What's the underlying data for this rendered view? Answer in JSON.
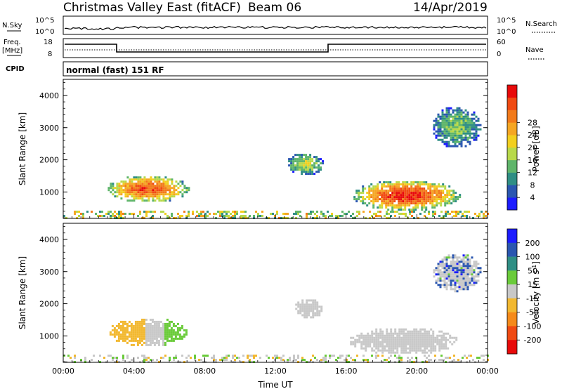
{
  "header": {
    "station": "Christmas Valley East (fitACF)",
    "beam": "Beam 06",
    "date": "14/Apr/2019"
  },
  "noise_panel": {
    "left_label": "N.Sky",
    "left_ticks": [
      "10^5",
      "10^0"
    ],
    "right_label": "N.Search",
    "right_ticks": [
      "10^5",
      "10^0"
    ]
  },
  "freq_panel": {
    "left_label_1": "Freq.",
    "left_label_2": "[MHz]",
    "left_ticks": [
      "18",
      "8"
    ],
    "right_label": "Nave",
    "right_ticks": [
      "60",
      "0"
    ]
  },
  "cpid": {
    "label": "CPID",
    "text": "normal (fast) 151 RF"
  },
  "chart_data": [
    {
      "type": "heatmap",
      "panel": "power",
      "ylabel": "Slant Range [km]",
      "ylim": [
        180,
        4500
      ],
      "yticks": [
        1000,
        2000,
        3000,
        4000
      ],
      "xlim_hours": [
        0,
        24
      ],
      "colorbar": {
        "label": "Power [dB]",
        "ticks": [
          "4",
          "8",
          "12",
          "16",
          "20",
          "24",
          "28"
        ],
        "colors": [
          "#1c1cff",
          "#2a56b0",
          "#2f8e84",
          "#5fb56a",
          "#b8d94a",
          "#f2cf1f",
          "#f5a623",
          "#f27a1a",
          "#f04a12",
          "#e80a0a"
        ]
      },
      "regions": [
        {
          "t0": 2.4,
          "t1": 7.1,
          "r0": 700,
          "r1": 1550,
          "value": 22
        },
        {
          "t0": 12.6,
          "t1": 14.7,
          "r0": 1550,
          "r1": 2250,
          "value": 12
        },
        {
          "t0": 16.3,
          "t1": 22.4,
          "r0": 450,
          "r1": 1400,
          "value": 24
        },
        {
          "t0": 20.8,
          "t1": 23.6,
          "r0": 2400,
          "r1": 3700,
          "value": 10
        },
        {
          "t0": 0.0,
          "t1": 24.0,
          "r0": 180,
          "r1": 420,
          "value": 16
        }
      ]
    },
    {
      "type": "heatmap",
      "panel": "velocity",
      "ylabel": "Slant Range [km]",
      "xlabel": "Time UT",
      "ylim": [
        180,
        4500
      ],
      "yticks": [
        1000,
        2000,
        3000,
        4000
      ],
      "xticks": [
        "00:00",
        "04:00",
        "08:00",
        "12:00",
        "16:00",
        "20:00",
        "00:00"
      ],
      "xlim_hours": [
        0,
        24
      ],
      "colorbar": {
        "label": "Velocity [m s^-1]",
        "ticks": [
          "200",
          "100",
          "50",
          "15",
          "-15",
          "-50",
          "-100",
          "-200"
        ],
        "colors": [
          "#1c1cff",
          "#2a56b0",
          "#2f8e84",
          "#6acb3a",
          "#c8c8c8",
          "#f2b830",
          "#f58a1a",
          "#f04a12",
          "#e80a0a"
        ]
      },
      "regions": [
        {
          "t0": 2.5,
          "t1": 7.0,
          "r0": 700,
          "r1": 1600,
          "value": 0
        },
        {
          "t0": 13.0,
          "t1": 14.6,
          "r0": 1550,
          "r1": 2200,
          "value": 0
        },
        {
          "t0": 16.1,
          "t1": 22.3,
          "r0": 450,
          "r1": 1300,
          "value": 0
        },
        {
          "t0": 20.8,
          "t1": 23.6,
          "r0": 2400,
          "r1": 3600,
          "value": 5
        }
      ]
    }
  ],
  "colors": {
    "axis": "#000000",
    "background": "#ffffff"
  }
}
